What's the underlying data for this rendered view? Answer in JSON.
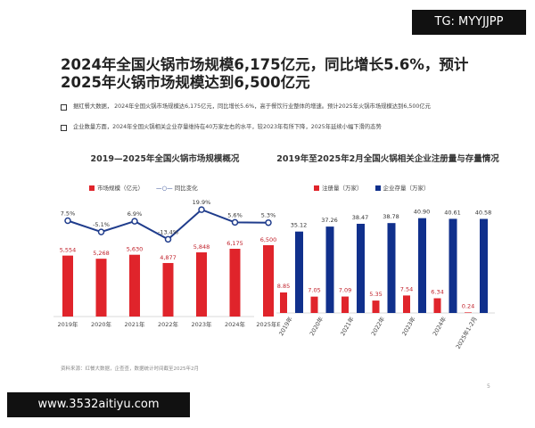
{
  "overlay": {
    "tag": "TG: MYYJJPP",
    "url": "www.3532aitiyu.com"
  },
  "slide": {
    "title": "2024年全国火锅市场规模6,175亿元，同比增长5.6%，预计2025年火锅市场规模达到6,500亿元",
    "bullets": [
      "据红餐大数据， 2024年全国火锅市场规模达6,175亿元，同比增长5.6%，高于餐饮行业整体的增速。预计2025年火锅市场规模达到6,500亿元",
      "企业数量方面，2024年全国火锅相关企业存量维持在40万家左右的水平，较2023年有所下降，2025年延续小幅下滑的态势"
    ],
    "source": "资料来源：红餐大数据，企查查，数据统计时间截至2025年2月",
    "page": "5"
  },
  "chart_data": [
    {
      "type": "bar+line",
      "title": "2019—2025年全国火锅市场规模概况",
      "categories": [
        "2019年",
        "2020年",
        "2021年",
        "2022年",
        "2023年",
        "2024年",
        "2025年E"
      ],
      "series": [
        {
          "name": "市场规模（亿元）",
          "type": "bar",
          "color": "#e0242b",
          "values": [
            5554,
            5268,
            5630,
            4877,
            5848,
            6175,
            6500
          ],
          "labels": [
            "5,554",
            "5,268",
            "5,630",
            "4,877",
            "5,848",
            "6,175",
            "6,500"
          ]
        },
        {
          "name": "同比变化",
          "type": "line",
          "color": "#1f3c8c",
          "values": [
            7.5,
            -5.1,
            6.9,
            -13.4,
            19.9,
            5.6,
            5.3
          ],
          "labels": [
            "7.5%",
            "-5.1%",
            "6.9%",
            "-13.4%",
            "19.9%",
            "5.6%",
            "5.3%"
          ]
        }
      ],
      "legend": "top",
      "grid": false
    },
    {
      "type": "bar",
      "title": "2019年至2025年2月全国火锅相关企业注册量与存量情况",
      "categories": [
        "2019年",
        "2020年",
        "2021年",
        "2022年",
        "2023年",
        "2024年",
        "2025年1-2月"
      ],
      "series": [
        {
          "name": "注册量（万家）",
          "color": "#e0242b",
          "values": [
            8.85,
            7.05,
            7.09,
            5.35,
            7.54,
            6.34,
            0.24
          ]
        },
        {
          "name": "企业存量（万家）",
          "color": "#10308c",
          "values": [
            35.12,
            37.26,
            38.47,
            38.78,
            40.9,
            40.61,
            40.58
          ]
        }
      ],
      "legend": "top",
      "grid": false
    }
  ]
}
